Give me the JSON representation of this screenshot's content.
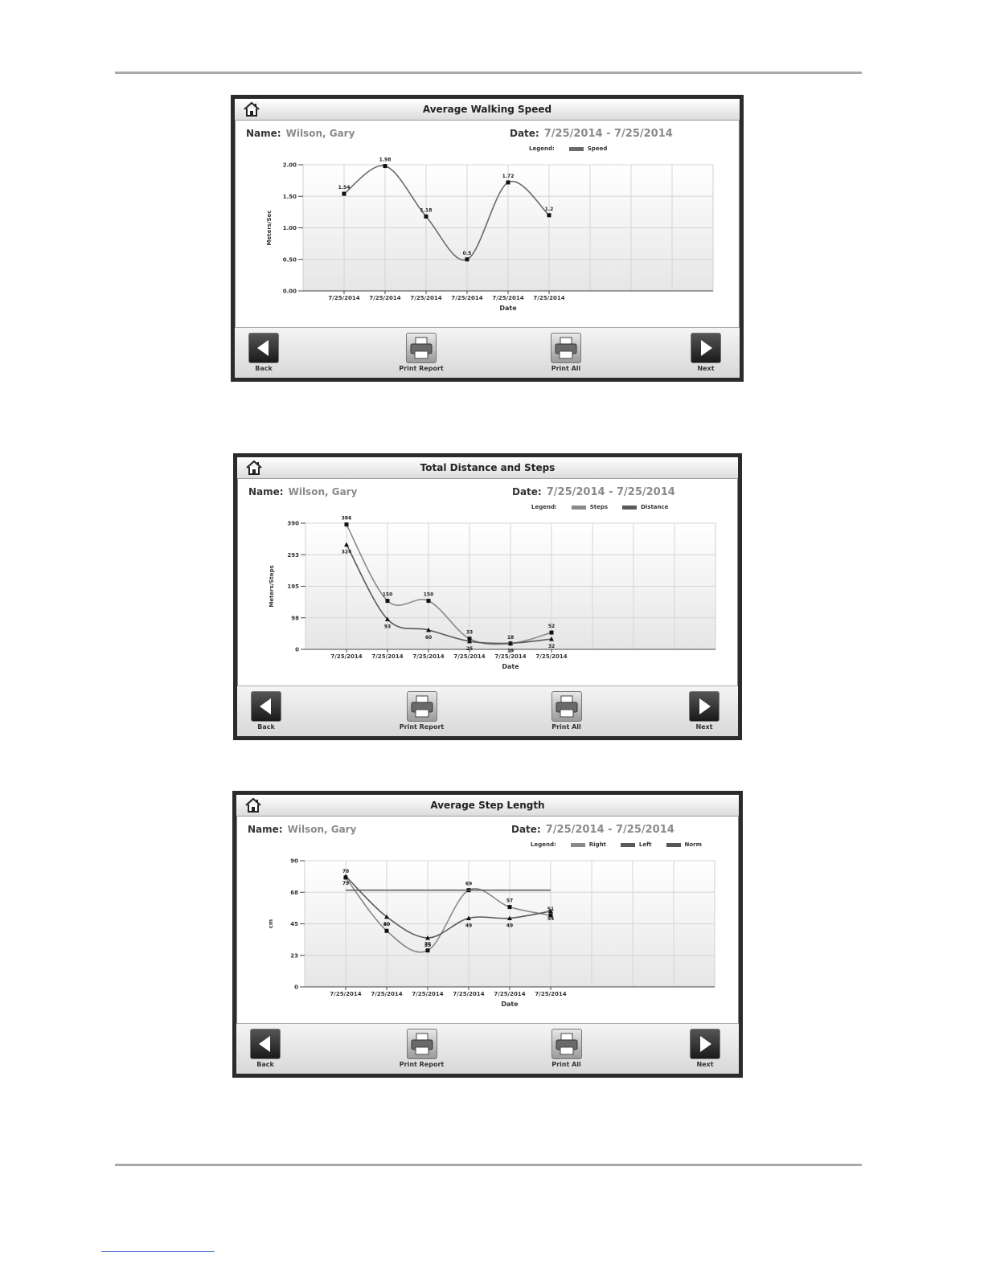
{
  "common": {
    "name_label": "Name:",
    "name_value": "Wilson, Gary",
    "date_label": "Date:",
    "date_value": "7/25/2014 - 7/25/2014",
    "legend_label": "Legend:",
    "buttons": {
      "back": "Back",
      "print_report": "Print Report",
      "print_all": "Print All",
      "next": "Next"
    }
  },
  "screens": [
    {
      "title": "Average Walking Speed",
      "legend": [
        "Speed"
      ],
      "chart_data": {
        "type": "line",
        "xlabel": "Date",
        "ylabel": "Meters/Sec",
        "ylim": [
          0,
          2
        ],
        "yticks": [
          "0.00",
          "0.50",
          "1.00",
          "1.50",
          "2.00"
        ],
        "categories": [
          "7/25/2014",
          "7/25/2014",
          "7/25/2014",
          "7/25/2014",
          "7/25/2014",
          "7/25/2014"
        ],
        "series": [
          {
            "name": "Speed",
            "values": [
              1.54,
              1.98,
              1.18,
              0.5,
              1.72,
              1.2
            ],
            "labels": [
              "1.54",
              "1.98",
              "1.18",
              "0.5",
              "1.72",
              "1.2"
            ],
            "color": "#6b6b6b",
            "marker": "square"
          }
        ]
      }
    },
    {
      "title": "Total Distance and Steps",
      "legend": [
        "Steps",
        "Distance"
      ],
      "chart_data": {
        "type": "line",
        "xlabel": "Date",
        "ylabel": "Meters/Steps",
        "ylim": [
          0,
          390
        ],
        "yticks": [
          "0",
          "98",
          "195",
          "293",
          "390"
        ],
        "categories": [
          "7/25/2014",
          "7/25/2014",
          "7/25/2014",
          "7/25/2014",
          "7/25/2014",
          "7/25/2014"
        ],
        "series": [
          {
            "name": "Steps",
            "values": [
              386,
              150,
              150,
              33,
              18,
              52
            ],
            "labels": [
              "386",
              "150",
              "150",
              "33",
              "18",
              "52"
            ],
            "color": "#8a8a8a",
            "marker": "square"
          },
          {
            "name": "Distance",
            "values": [
              324,
              93,
              60,
              25,
              19,
              32
            ],
            "labels": [
              "324",
              "93",
              "60",
              "25",
              "19",
              "32"
            ],
            "color": "#5a5a5a",
            "marker": "triangle"
          }
        ]
      }
    },
    {
      "title": "Average Step Length",
      "legend": [
        "Right",
        "Left",
        "Norm"
      ],
      "chart_data": {
        "type": "line",
        "xlabel": "Date",
        "ylabel": "cm",
        "ylim": [
          0,
          90
        ],
        "yticks": [
          "0",
          "23",
          "45",
          "68",
          "90"
        ],
        "categories": [
          "7/25/2014",
          "7/25/2014",
          "7/25/2014",
          "7/25/2014",
          "7/25/2014",
          "7/25/2014"
        ],
        "series": [
          {
            "name": "Right",
            "values": [
              78,
              40,
              26,
              69,
              57,
              51
            ],
            "labels": [
              "78",
              "40",
              "26",
              "69",
              "57",
              "51"
            ],
            "color": "#8a8a8a",
            "marker": "square"
          },
          {
            "name": "Left",
            "values": [
              79,
              50,
              35,
              49,
              49,
              54
            ],
            "labels": [
              "79",
              "50",
              "35",
              "49",
              "49",
              "54"
            ],
            "color": "#5a5a5a",
            "marker": "triangle"
          },
          {
            "name": "Norm",
            "values": [
              69,
              69,
              69,
              69,
              69,
              69
            ],
            "labels": [],
            "color": "#555555",
            "marker": "none"
          }
        ]
      }
    }
  ],
  "colors": {
    "frame": "#2b2b2b",
    "grid": "#d5d5d5",
    "text_gray": "#8a8a8a"
  }
}
